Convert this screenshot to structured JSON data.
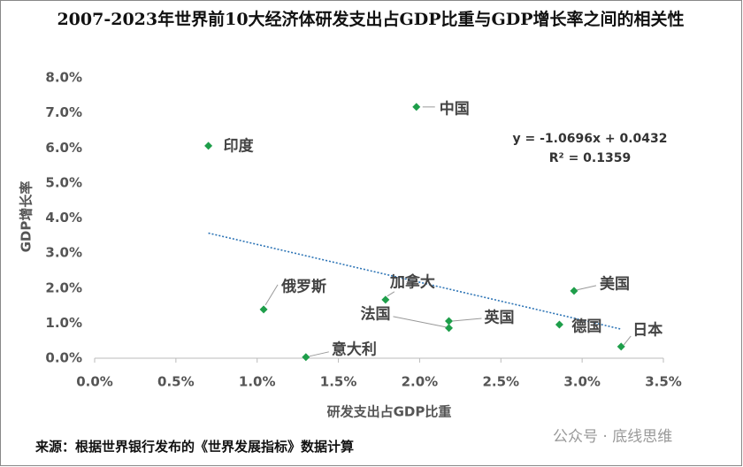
{
  "chart_data": {
    "type": "scatter",
    "title": "2007-2023年世界前10大经济体研发支出占GDP比重与GDP增长率之间的相关性",
    "x_label": "研发支出占GDP比重",
    "y_label": "GDP增长率",
    "points": [
      "中国",
      "印度",
      "俄罗斯",
      "加拿大",
      "法国",
      "英国",
      "意大利",
      "美国",
      "德国",
      "日本"
    ],
    "x": [
      1.98,
      0.7,
      1.04,
      1.79,
      2.18,
      2.18,
      1.3,
      2.95,
      2.86,
      3.24
    ],
    "values": [
      7.17,
      6.06,
      1.39,
      1.67,
      0.86,
      1.06,
      0.03,
      1.92,
      0.96,
      0.33
    ],
    "color": "#1e9e4a",
    "xlim": [
      0,
      3.5
    ],
    "ylim": [
      0,
      8
    ],
    "xticks": [
      {
        "value": 0,
        "label": "0.0%"
      },
      {
        "value": 0.5,
        "label": "0.5%"
      },
      {
        "value": 1,
        "label": "1.0%"
      },
      {
        "value": 1.5,
        "label": "1.5%"
      },
      {
        "value": 2,
        "label": "2.0%"
      },
      {
        "value": 2.5,
        "label": "2.5%"
      },
      {
        "value": 3,
        "label": "3.0%"
      },
      {
        "value": 3.5,
        "label": "3.5%"
      }
    ],
    "yticks": [
      {
        "value": 0,
        "label": "0.0%"
      },
      {
        "value": 1,
        "label": "1.0%"
      },
      {
        "value": 2,
        "label": "2.0%"
      },
      {
        "value": 3,
        "label": "3.0%"
      },
      {
        "value": 4,
        "label": "4.0%"
      },
      {
        "value": 5,
        "label": "5.0%"
      },
      {
        "value": 6,
        "label": "6.0%"
      },
      {
        "value": 7,
        "label": "7.0%"
      },
      {
        "value": 8,
        "label": "8.0%"
      }
    ],
    "trendline": {
      "equation": "y = -1.0696x + 0.0432",
      "r2": "R² = 0.1359",
      "x": [
        0.7,
        3.24
      ],
      "y": [
        3.57,
        0.83
      ],
      "color": "#2e75b6"
    },
    "source": "来源：根据世界银行发布的《世界发展指标》数据计算",
    "watermark": "公众号 · 底线思维"
  }
}
